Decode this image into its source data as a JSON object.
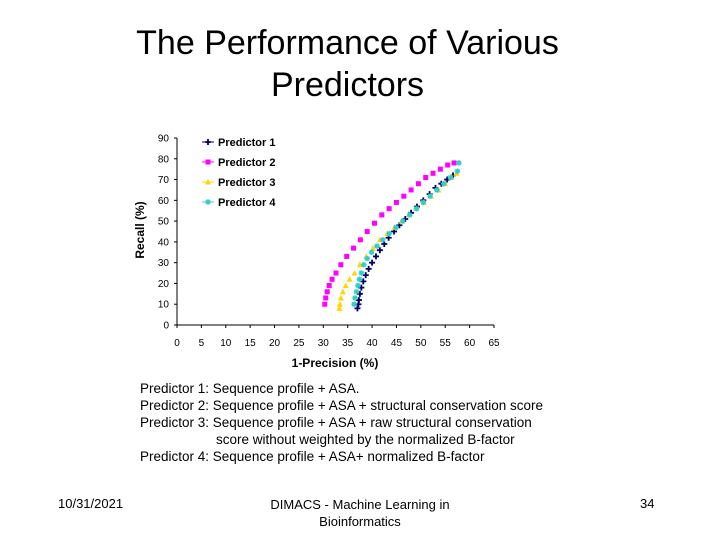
{
  "slide": {
    "title_line1": "The Performance of Various",
    "title_line2": "Predictors",
    "descriptions": [
      "Predictor 1: Sequence profile + ASA.",
      "Predictor 2: Sequence profile + ASA + structural conservation score",
      "Predictor 3: Sequence profile + ASA + raw structural conservation",
      "score without weighted by the normalized B-factor",
      "Predictor 4: Sequence profile + ASA+ normalized B-factor"
    ],
    "footer": {
      "date": "10/31/2021",
      "center_line1": "DIMACS - Machine Learning in",
      "center_line2": "Bioinformatics",
      "page": "34"
    }
  },
  "chart_data": {
    "type": "scatter",
    "title": "",
    "xlabel": "1-Precision (%)",
    "ylabel": "Recall (%)",
    "xlim": [
      0,
      65
    ],
    "ylim": [
      0,
      90
    ],
    "xticks": [
      "0",
      "5",
      "10",
      "15",
      "20",
      "25",
      "30",
      "35",
      "40",
      "45",
      "50",
      "55",
      "60",
      "65"
    ],
    "yticks": [
      "0",
      "10",
      "20",
      "30",
      "40",
      "50",
      "60",
      "70",
      "80",
      "90"
    ],
    "grid": false,
    "legend_position": "top-left",
    "series": [
      {
        "name": "Predictor 1",
        "color": "#000066",
        "marker": "plus",
        "points": [
          [
            37.0,
            8
          ],
          [
            37.2,
            10
          ],
          [
            37.3,
            12
          ],
          [
            37.5,
            15
          ],
          [
            37.8,
            18
          ],
          [
            38.2,
            21
          ],
          [
            38.7,
            24
          ],
          [
            39.3,
            27
          ],
          [
            40.0,
            30
          ],
          [
            40.8,
            33
          ],
          [
            41.6,
            36
          ],
          [
            42.5,
            39
          ],
          [
            43.4,
            42
          ],
          [
            44.5,
            45
          ],
          [
            45.6,
            48
          ],
          [
            46.8,
            51
          ],
          [
            48.0,
            54
          ],
          [
            49.2,
            57
          ],
          [
            50.5,
            60
          ],
          [
            51.8,
            63
          ],
          [
            53.0,
            66
          ],
          [
            54.2,
            68
          ],
          [
            55.4,
            70
          ],
          [
            56.6,
            72
          ]
        ]
      },
      {
        "name": "Predictor 2",
        "color": "#ff00ff",
        "marker": "square",
        "points": [
          [
            30.3,
            10
          ],
          [
            30.5,
            13
          ],
          [
            30.8,
            16
          ],
          [
            31.2,
            19
          ],
          [
            31.8,
            22
          ],
          [
            32.6,
            25
          ],
          [
            33.6,
            29
          ],
          [
            34.8,
            33
          ],
          [
            36.2,
            37
          ],
          [
            37.6,
            41
          ],
          [
            39.0,
            45
          ],
          [
            40.5,
            49
          ],
          [
            42.0,
            53
          ],
          [
            43.5,
            56
          ],
          [
            45.0,
            59
          ],
          [
            46.5,
            62
          ],
          [
            48.0,
            65
          ],
          [
            49.5,
            68
          ],
          [
            51.0,
            71
          ],
          [
            52.5,
            73
          ],
          [
            54.0,
            75
          ],
          [
            55.5,
            77
          ],
          [
            56.8,
            78
          ]
        ]
      },
      {
        "name": "Predictor 3",
        "color": "#ffd700",
        "marker": "triangle",
        "points": [
          [
            33.3,
            8
          ],
          [
            33.4,
            10
          ],
          [
            33.6,
            13
          ],
          [
            34.0,
            16
          ],
          [
            34.6,
            19
          ],
          [
            35.4,
            22
          ],
          [
            36.4,
            25
          ],
          [
            37.5,
            29
          ],
          [
            38.8,
            33
          ],
          [
            40.2,
            37
          ],
          [
            41.6,
            41
          ],
          [
            43.1,
            44
          ],
          [
            44.6,
            47
          ],
          [
            46.1,
            50
          ],
          [
            47.6,
            53
          ],
          [
            49.1,
            56
          ],
          [
            50.6,
            59
          ],
          [
            52.1,
            62
          ],
          [
            53.6,
            65
          ],
          [
            55.0,
            68
          ],
          [
            56.3,
            71
          ],
          [
            57.3,
            73
          ]
        ]
      },
      {
        "name": "Predictor 4",
        "color": "#33cccc",
        "marker": "star",
        "points": [
          [
            36.3,
            10
          ],
          [
            36.5,
            13
          ],
          [
            36.8,
            16
          ],
          [
            37.1,
            19
          ],
          [
            37.4,
            22
          ],
          [
            37.8,
            25
          ],
          [
            38.3,
            29
          ],
          [
            39.0,
            32
          ],
          [
            39.9,
            35
          ],
          [
            41.0,
            38
          ],
          [
            42.2,
            41
          ],
          [
            43.5,
            44
          ],
          [
            44.9,
            47
          ],
          [
            46.3,
            50
          ],
          [
            47.7,
            53
          ],
          [
            49.1,
            56
          ],
          [
            50.5,
            59
          ],
          [
            51.9,
            62
          ],
          [
            53.3,
            65
          ],
          [
            54.7,
            68
          ],
          [
            56.1,
            71
          ],
          [
            57.5,
            74
          ],
          [
            57.8,
            78
          ]
        ]
      }
    ]
  }
}
